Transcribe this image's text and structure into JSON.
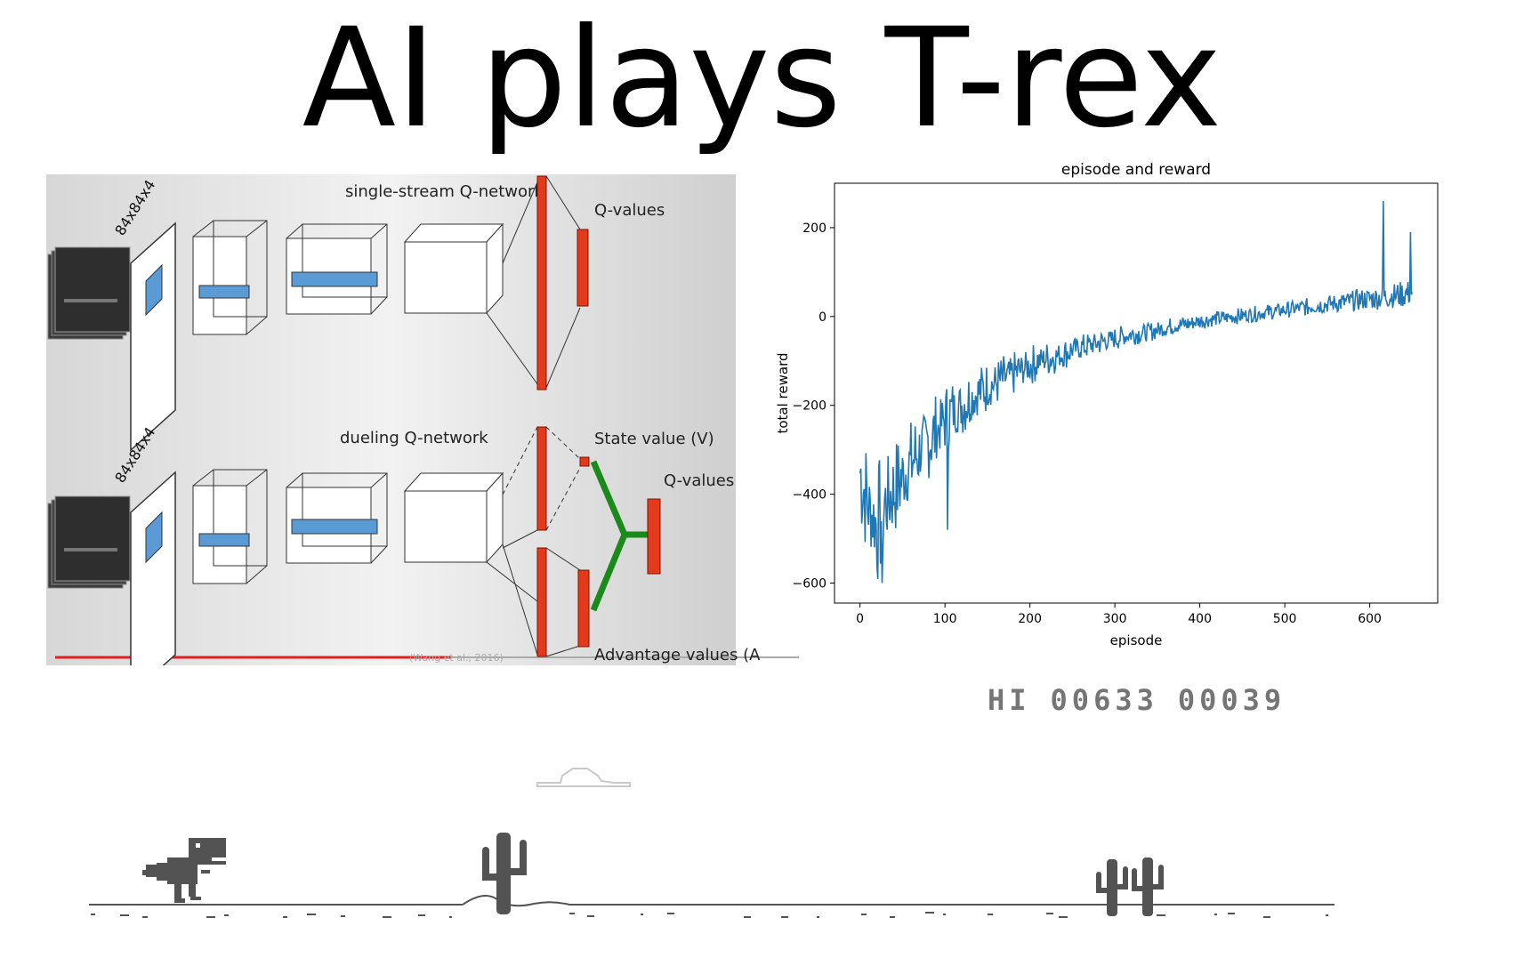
{
  "title": "AI plays T-rex",
  "diagram": {
    "single_title": "single-stream Q-network",
    "dueling_title": "dueling Q-network",
    "input_label": "84x84x4",
    "q_values": "Q-values",
    "state_value": "State value (V)",
    "advantage_values": "Advantage values (A",
    "citation": "(Wang et al., 2016)"
  },
  "chart_data": {
    "type": "line",
    "title": "episode and reward",
    "xlabel": "episode",
    "ylabel": "total reward",
    "xlim": [
      -30,
      680
    ],
    "ylim": [
      -645,
      300
    ],
    "xticks": [
      0,
      100,
      200,
      300,
      400,
      500,
      600
    ],
    "yticks": [
      -600,
      -400,
      -200,
      0,
      200
    ],
    "grid": false,
    "color": "#1f77b4",
    "x": [
      0,
      10,
      20,
      30,
      40,
      50,
      60,
      70,
      80,
      90,
      100,
      110,
      120,
      130,
      140,
      150,
      160,
      170,
      180,
      190,
      200,
      210,
      220,
      230,
      240,
      250,
      260,
      270,
      280,
      290,
      300,
      310,
      320,
      330,
      340,
      350,
      360,
      370,
      380,
      390,
      400,
      410,
      420,
      430,
      440,
      450,
      460,
      470,
      480,
      490,
      500,
      510,
      520,
      530,
      540,
      550,
      560,
      570,
      580,
      590,
      600,
      610,
      620,
      630,
      640,
      650
    ],
    "values": [
      -350,
      -430,
      -470,
      -420,
      -390,
      -360,
      -330,
      -300,
      -280,
      -260,
      -230,
      -215,
      -200,
      -185,
      -170,
      -160,
      -150,
      -140,
      -130,
      -120,
      -110,
      -100,
      -95,
      -90,
      -85,
      -75,
      -70,
      -65,
      -60,
      -55,
      -50,
      -45,
      -40,
      -38,
      -35,
      -30,
      -25,
      -20,
      -18,
      -15,
      -10,
      -8,
      -5,
      -3,
      0,
      2,
      5,
      7,
      10,
      12,
      15,
      17,
      20,
      22,
      25,
      28,
      30,
      32,
      35,
      38,
      40,
      42,
      45,
      48,
      50,
      55
    ],
    "noise": [
      -130,
      90,
      -140,
      100,
      -110,
      80,
      -100,
      70,
      -90,
      60,
      -80,
      55,
      -70,
      50,
      -60,
      45,
      -55,
      40,
      -50,
      35,
      -45,
      30,
      -40,
      28,
      -35,
      25,
      -30,
      24,
      -28,
      22,
      -26,
      20,
      -24,
      20,
      -22,
      18,
      -20,
      18,
      -20,
      16,
      -18,
      16,
      -18,
      15,
      -18,
      15,
      -18,
      15,
      -18,
      16,
      -18,
      16,
      -20,
      18,
      -20,
      20,
      -22,
      22,
      -24,
      24,
      -26,
      26,
      -28,
      30,
      -30,
      32
    ],
    "spikes": [
      {
        "x": 26,
        "y": -600
      },
      {
        "x": 103,
        "y": -480
      },
      {
        "x": 616,
        "y": 260
      },
      {
        "x": 648,
        "y": 190
      }
    ]
  },
  "score": {
    "hi_label": "HI",
    "hi": "00633",
    "current": "00039"
  }
}
